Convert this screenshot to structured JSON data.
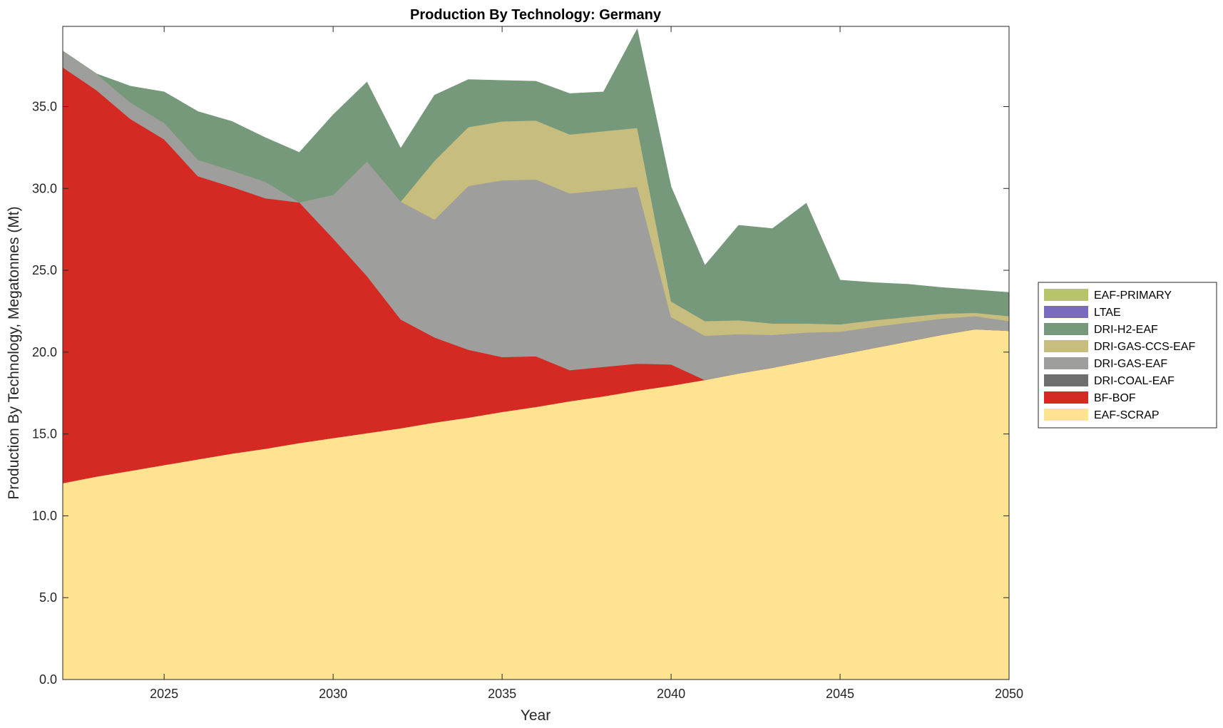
{
  "chart_data": {
    "type": "area",
    "stacked": true,
    "title": "Production By Technology: Germany",
    "xlabel": "Year",
    "ylabel": "Production By Technology, Megatonnes (Mt)",
    "xlim": [
      2022,
      2050
    ],
    "ylim": [
      0,
      39.9
    ],
    "xticks": [
      2025,
      2030,
      2035,
      2040,
      2045,
      2050
    ],
    "yticks": [
      "0.0",
      "5.0",
      "10.0",
      "15.0",
      "20.0",
      "25.0",
      "30.0",
      "35.0"
    ],
    "grid": false,
    "legend_position": "right",
    "x": [
      2022,
      2023,
      2024,
      2025,
      2026,
      2027,
      2028,
      2029,
      2030,
      2031,
      2032,
      2033,
      2034,
      2035,
      2036,
      2037,
      2038,
      2039,
      2040,
      2041,
      2042,
      2043,
      2044,
      2045,
      2046,
      2047,
      2048,
      2049,
      2050
    ],
    "series": [
      {
        "name": "EAF-SCRAP",
        "color": "#FEE391",
        "values": [
          12.0,
          12.4,
          12.75,
          13.1,
          13.45,
          13.8,
          14.1,
          14.45,
          14.75,
          15.05,
          15.35,
          15.7,
          16.0,
          16.35,
          16.65,
          17.0,
          17.3,
          17.65,
          17.95,
          18.3,
          18.7,
          19.05,
          19.45,
          19.85,
          20.25,
          20.65,
          21.05,
          21.4,
          21.3
        ]
      },
      {
        "name": "BF-BOF",
        "color": "#D52A24",
        "values": [
          25.4,
          23.6,
          21.5,
          19.9,
          17.3,
          16.3,
          15.3,
          14.7,
          12.2,
          9.6,
          6.65,
          5.2,
          4.15,
          3.35,
          3.1,
          1.9,
          1.8,
          1.65,
          1.3,
          0,
          0,
          0,
          0,
          0,
          0,
          0,
          0,
          0,
          0
        ]
      },
      {
        "name": "DRI-COAL-EAF",
        "color": "#6E6E6E",
        "values": [
          0,
          0,
          0,
          0,
          0,
          0,
          0,
          0,
          0,
          0,
          0,
          0,
          0,
          0,
          0,
          0,
          0,
          0,
          0,
          0,
          0,
          0,
          0,
          0,
          0,
          0,
          0,
          0,
          0
        ]
      },
      {
        "name": "DRI-GAS-EAF",
        "color": "#9E9E9C",
        "values": [
          1.0,
          1.0,
          1.0,
          1.0,
          1.0,
          1.0,
          1.0,
          0,
          2.65,
          7.0,
          7.2,
          7.2,
          10.0,
          10.8,
          10.8,
          10.8,
          10.8,
          10.8,
          2.9,
          2.7,
          2.4,
          2.0,
          1.75,
          1.4,
          1.3,
          1.15,
          1.0,
          0.8,
          0.6
        ]
      },
      {
        "name": "DRI-GAS-CCS-EAF",
        "color": "#C6BD7E",
        "values": [
          0,
          0,
          0,
          0,
          0,
          0,
          0,
          0,
          0,
          0,
          0,
          3.6,
          3.6,
          3.6,
          3.6,
          3.6,
          3.6,
          3.6,
          0.95,
          0.9,
          0.85,
          0.7,
          0.55,
          0.45,
          0.4,
          0.35,
          0.3,
          0.2,
          0.3
        ]
      },
      {
        "name": "DRI-H2-EAF",
        "color": "#76997B",
        "values": [
          0,
          0,
          1.0,
          1.9,
          2.95,
          3.0,
          2.7,
          3.05,
          4.9,
          4.85,
          3.25,
          4.0,
          2.9,
          2.5,
          2.4,
          2.5,
          2.4,
          6.05,
          7.0,
          3.4,
          5.8,
          5.8,
          7.35,
          2.7,
          2.3,
          2.0,
          1.6,
          1.4,
          1.45
        ]
      },
      {
        "name": "LTAE",
        "color": "#7A6BBF",
        "values": [
          0,
          0,
          0,
          0,
          0,
          0,
          0,
          0,
          0,
          0,
          0,
          0,
          0,
          0,
          0,
          0,
          0,
          0,
          0,
          0,
          0,
          0,
          0,
          0,
          0,
          0,
          0,
          0,
          0
        ]
      },
      {
        "name": "EAF-PRIMARY",
        "color": "#B7C46A",
        "values": [
          0,
          0,
          0,
          0,
          0,
          0,
          0,
          0,
          0,
          0,
          0,
          0,
          0,
          0,
          0,
          0,
          0,
          0,
          0,
          0,
          0,
          0,
          0,
          0,
          0,
          0,
          0,
          0,
          0
        ]
      }
    ],
    "legend_order": [
      "EAF-PRIMARY",
      "LTAE",
      "DRI-H2-EAF",
      "DRI-GAS-CCS-EAF",
      "DRI-GAS-EAF",
      "DRI-COAL-EAF",
      "BF-BOF",
      "EAF-SCRAP"
    ]
  }
}
